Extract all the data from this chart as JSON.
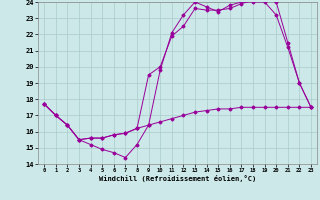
{
  "xlabel": "Windchill (Refroidissement éolien,°C)",
  "bg_color": "#cce8e8",
  "grid_color": "#aacccc",
  "line_color": "#990099",
  "xlim": [
    -0.5,
    23.5
  ],
  "ylim": [
    14,
    24
  ],
  "xticks": [
    0,
    1,
    2,
    3,
    4,
    5,
    6,
    7,
    8,
    9,
    10,
    11,
    12,
    13,
    14,
    15,
    16,
    17,
    18,
    19,
    20,
    21,
    22,
    23
  ],
  "yticks": [
    14,
    15,
    16,
    17,
    18,
    19,
    20,
    21,
    22,
    23,
    24
  ],
  "series": [
    {
      "x": [
        0,
        1,
        2,
        3,
        4,
        5,
        6,
        7,
        8,
        9,
        10,
        11,
        12,
        13,
        14,
        15,
        16,
        17,
        18,
        19,
        20,
        21,
        22,
        23
      ],
      "y": [
        17.7,
        17.0,
        16.4,
        15.5,
        15.2,
        14.9,
        14.7,
        14.4,
        15.2,
        16.4,
        19.8,
        22.1,
        23.2,
        24.0,
        23.7,
        23.4,
        23.8,
        24.0,
        24.0,
        24.0,
        23.2,
        21.2,
        19.0,
        17.5
      ]
    },
    {
      "x": [
        0,
        1,
        2,
        3,
        4,
        5,
        6,
        7,
        8,
        9,
        10,
        11,
        12,
        13,
        14,
        15,
        16,
        17,
        18,
        19,
        20,
        21,
        22,
        23
      ],
      "y": [
        17.7,
        17.0,
        16.4,
        15.5,
        15.6,
        15.6,
        15.8,
        15.9,
        16.2,
        19.5,
        20.0,
        21.9,
        22.5,
        23.6,
        23.5,
        23.5,
        23.6,
        23.9,
        24.1,
        24.1,
        24.0,
        21.5,
        19.0,
        17.5
      ]
    },
    {
      "x": [
        0,
        1,
        2,
        3,
        4,
        5,
        6,
        7,
        8,
        9,
        10,
        11,
        12,
        13,
        14,
        15,
        16,
        17,
        18,
        19,
        20,
        21,
        22,
        23
      ],
      "y": [
        17.7,
        17.0,
        16.4,
        15.5,
        15.6,
        15.6,
        15.8,
        15.9,
        16.2,
        16.4,
        16.6,
        16.8,
        17.0,
        17.2,
        17.3,
        17.4,
        17.4,
        17.5,
        17.5,
        17.5,
        17.5,
        17.5,
        17.5,
        17.5
      ]
    }
  ]
}
